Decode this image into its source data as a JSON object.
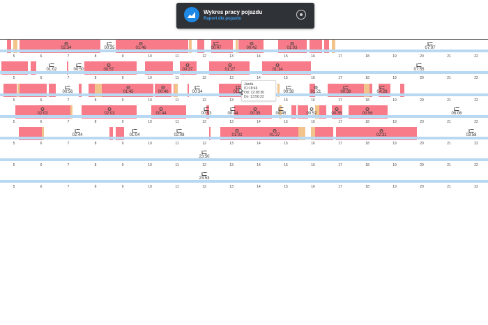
{
  "header": {
    "title": "Wykres pracy pojazdu",
    "subtitle": "Raport dla pojazdu",
    "icon": "chart-area-icon",
    "download_icon": "download-icon",
    "accent": "#1e88e5"
  },
  "colors": {
    "drive": "#f77b88",
    "other": "#f2c48c",
    "track": "#b9d9f3"
  },
  "hours": [
    "5",
    "6",
    "7",
    "8",
    "9",
    "10",
    "11",
    "12",
    "13",
    "14",
    "15",
    "16",
    "17",
    "18",
    "19",
    "20",
    "21",
    "22"
  ],
  "rows": [
    {
      "labels": [
        {
          "text": "02:34",
          "icon": "drive"
        },
        {
          "text": "00:35",
          "icon": "rest"
        },
        {
          "text": "01:46",
          "icon": "drive"
        },
        {
          "text": "00:47",
          "icon": "rest"
        },
        {
          "text": "00:42",
          "icon": "drive"
        },
        {
          "text": "01:03",
          "icon": "drive"
        },
        {
          "text": "07:07",
          "icon": "rest"
        }
      ]
    },
    {
      "labels": [
        {
          "text": "01:02",
          "icon": "rest"
        },
        {
          "text": "00:50",
          "icon": "rest"
        },
        {
          "text": "00:57",
          "icon": "drive"
        },
        {
          "text": "00:37",
          "icon": "drive"
        },
        {
          "text": "01:27",
          "icon": "drive"
        },
        {
          "text": "01:14",
          "icon": "drive"
        },
        {
          "text": "07:55",
          "icon": "rest"
        }
      ]
    },
    {
      "labels": [
        {
          "text": "00:56",
          "icon": "rest"
        },
        {
          "text": "01:45",
          "icon": "drive"
        },
        {
          "text": "00:40",
          "icon": "drive"
        },
        {
          "text": "00:34",
          "icon": "rest"
        },
        {
          "text": "01:19",
          "icon": "rest"
        },
        {
          "text": "00:38",
          "icon": "rest"
        },
        {
          "text": "01:21",
          "icon": "drive"
        },
        {
          "text": "00:38",
          "icon": "rest"
        },
        {
          "text": "04:28",
          "icon": "rest"
        }
      ]
    },
    {
      "labels": [
        {
          "text": "02:03",
          "icon": "drive"
        },
        {
          "text": "02:03",
          "icon": "drive"
        },
        {
          "text": "00:44",
          "icon": "drive"
        },
        {
          "text": "00:53",
          "icon": "rest"
        },
        {
          "text": "00:44",
          "icon": "rest"
        },
        {
          "text": "00:35",
          "icon": "drive"
        },
        {
          "text": "00:45",
          "icon": "rest"
        },
        {
          "text": "00:52",
          "icon": "drive"
        },
        {
          "text": "00:35",
          "icon": "drive"
        },
        {
          "text": "00:56",
          "icon": "drive"
        },
        {
          "text": "05:06",
          "icon": "rest"
        }
      ]
    },
    {
      "labels": [
        {
          "text": "02:44",
          "icon": "rest"
        },
        {
          "text": "01:04",
          "icon": "rest"
        },
        {
          "text": "02:08",
          "icon": "rest"
        },
        {
          "text": "01:02",
          "icon": "drive"
        },
        {
          "text": "01:37",
          "icon": "drive"
        },
        {
          "text": "02:31",
          "icon": "drive"
        },
        {
          "text": "03:58",
          "icon": "rest"
        }
      ]
    },
    {
      "labels": [
        {
          "text": "23:50",
          "icon": "rest"
        }
      ]
    },
    {
      "labels": [
        {
          "text": "23:53",
          "icon": "rest"
        }
      ]
    }
  ],
  "tooltip": {
    "title": "Jazda",
    "duration": "01:18:46",
    "from": "Od: 12:38:36",
    "to": "Do: 13:56:22"
  }
}
